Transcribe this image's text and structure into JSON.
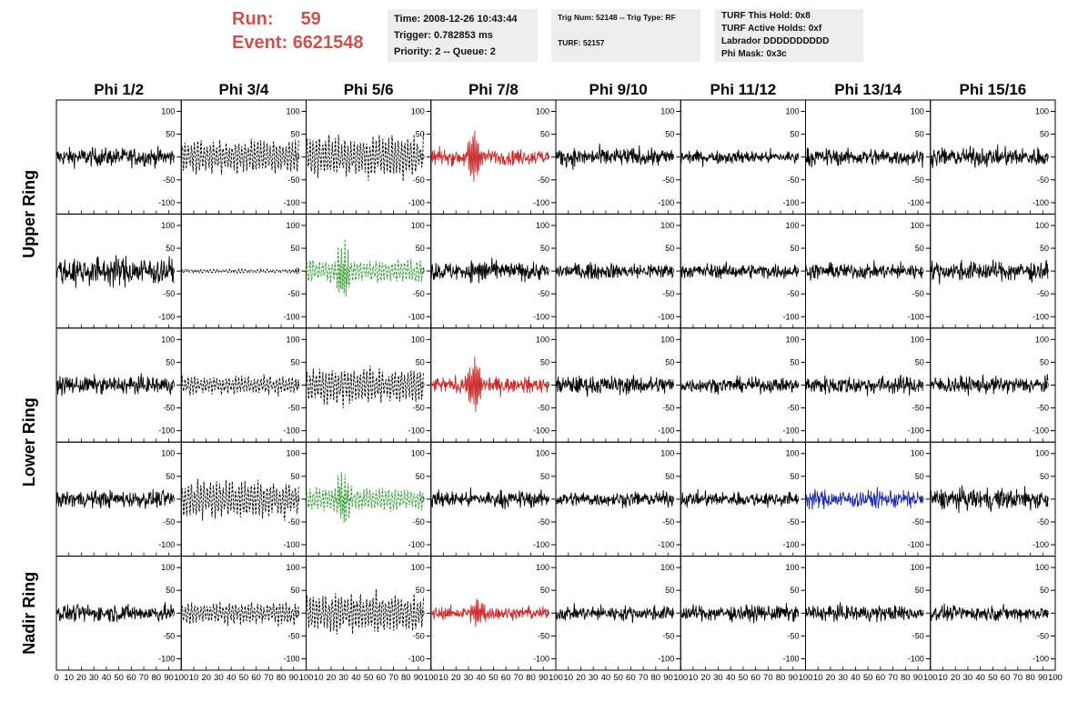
{
  "header": {
    "run_label": "Run:",
    "run_value": "59",
    "event_label": "Event:",
    "event_value": "6621548",
    "time": "Time: 2008-12-26 10:43:44",
    "trigger": "Trigger: 0.782853 ms",
    "priority": "Priority: 2 -- Queue: 2",
    "trig_num": "Trig Num: 52148 -- Trig Type: RF",
    "turf": "TURF: 52157",
    "turf_hold": "TURF This Hold: 0x8",
    "turf_active": "TURF Active Holds: 0xf",
    "labrador": "Labrador DDDDDDDDDD",
    "phi_mask": "Phi Mask: 0x3c"
  },
  "colors": {
    "header_red": "#c9534f",
    "trace_black": "#000000",
    "trace_red": "#cc2a2a",
    "trace_green": "#2a9a2a",
    "trace_blue": "#1a2aa8",
    "info_bg": "#eeeeee"
  },
  "chart_data": {
    "type": "line",
    "columns": [
      "Phi 1/2",
      "Phi 3/4",
      "Phi 5/6",
      "Phi 7/8",
      "Phi 9/10",
      "Phi 11/12",
      "Phi 13/14",
      "Phi 15/16"
    ],
    "ring_labels": [
      {
        "label": "Upper Ring",
        "rows": [
          0,
          1
        ]
      },
      {
        "label": "Lower Ring",
        "rows": [
          2,
          3
        ]
      },
      {
        "label": "Nadir Ring",
        "rows": [
          4
        ]
      }
    ],
    "ylim": [
      -125,
      125
    ],
    "yticks": [
      -100,
      -50,
      0,
      50,
      100
    ],
    "xlim": [
      0,
      100
    ],
    "xticks": [
      0,
      10,
      20,
      30,
      40,
      50,
      60,
      70,
      80,
      90,
      100
    ],
    "trace_x_range": [
      0,
      94
    ],
    "cells": [
      [
        {
          "color": "black",
          "dash": false,
          "amp": 14,
          "burst": 0
        },
        {
          "color": "black",
          "dash": true,
          "amp": 26,
          "burst": 0
        },
        {
          "color": "black",
          "dash": true,
          "amp": 32,
          "burst": 0
        },
        {
          "color": "red",
          "dash": false,
          "amp": 12,
          "burst": 60,
          "burst_center": 35
        },
        {
          "color": "black",
          "dash": false,
          "amp": 14,
          "burst": 0
        },
        {
          "color": "black",
          "dash": false,
          "amp": 10,
          "burst": 0
        },
        {
          "color": "black",
          "dash": false,
          "amp": 13,
          "burst": 0
        },
        {
          "color": "black",
          "dash": false,
          "amp": 14,
          "burst": 0
        }
      ],
      [
        {
          "color": "black",
          "dash": false,
          "amp": 22,
          "burst": 0
        },
        {
          "color": "black",
          "dash": true,
          "amp": 3,
          "burst": 0
        },
        {
          "color": "green",
          "dash": true,
          "amp": 18,
          "burst": 60,
          "burst_center": 30
        },
        {
          "color": "black",
          "dash": false,
          "amp": 14,
          "burst": 20,
          "burst_center": 40
        },
        {
          "color": "black",
          "dash": false,
          "amp": 12,
          "burst": 0
        },
        {
          "color": "black",
          "dash": false,
          "amp": 11,
          "burst": 0
        },
        {
          "color": "black",
          "dash": false,
          "amp": 12,
          "burst": 0
        },
        {
          "color": "black",
          "dash": false,
          "amp": 15,
          "burst": 0
        }
      ],
      [
        {
          "color": "black",
          "dash": false,
          "amp": 13,
          "burst": 0
        },
        {
          "color": "black",
          "dash": true,
          "amp": 14,
          "burst": 0
        },
        {
          "color": "black",
          "dash": true,
          "amp": 28,
          "burst": 0
        },
        {
          "color": "red",
          "dash": false,
          "amp": 12,
          "burst": 60,
          "burst_center": 35
        },
        {
          "color": "black",
          "dash": false,
          "amp": 14,
          "burst": 0
        },
        {
          "color": "black",
          "dash": false,
          "amp": 11,
          "burst": 0
        },
        {
          "color": "black",
          "dash": false,
          "amp": 14,
          "burst": 0
        },
        {
          "color": "black",
          "dash": false,
          "amp": 13,
          "burst": 0
        }
      ],
      [
        {
          "color": "black",
          "dash": false,
          "amp": 13,
          "burst": 0
        },
        {
          "color": "black",
          "dash": true,
          "amp": 30,
          "burst": 0
        },
        {
          "color": "green",
          "dash": true,
          "amp": 18,
          "burst": 60,
          "burst_center": 30
        },
        {
          "color": "black",
          "dash": false,
          "amp": 13,
          "burst": 0
        },
        {
          "color": "black",
          "dash": false,
          "amp": 11,
          "burst": 0
        },
        {
          "color": "black",
          "dash": false,
          "amp": 11,
          "burst": 0
        },
        {
          "color": "blue",
          "dash": false,
          "amp": 14,
          "burst": 0
        },
        {
          "color": "black",
          "dash": false,
          "amp": 16,
          "burst": 0
        }
      ],
      [
        {
          "color": "black",
          "dash": false,
          "amp": 13,
          "burst": 0
        },
        {
          "color": "black",
          "dash": true,
          "amp": 18,
          "burst": 0
        },
        {
          "color": "black",
          "dash": true,
          "amp": 30,
          "burst": 20,
          "burst_center": 40
        },
        {
          "color": "red",
          "dash": false,
          "amp": 10,
          "burst": 35,
          "burst_center": 38
        },
        {
          "color": "black",
          "dash": false,
          "amp": 11,
          "burst": 0
        },
        {
          "color": "black",
          "dash": false,
          "amp": 12,
          "burst": 0
        },
        {
          "color": "black",
          "dash": false,
          "amp": 12,
          "burst": 0
        },
        {
          "color": "black",
          "dash": false,
          "amp": 11,
          "burst": 0
        }
      ]
    ]
  }
}
